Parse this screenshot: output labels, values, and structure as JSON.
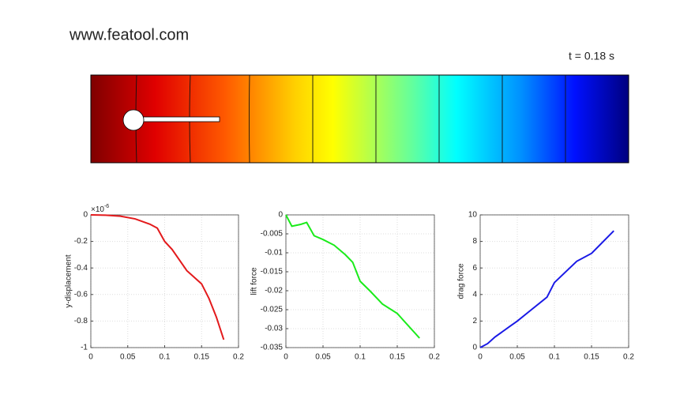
{
  "header": {
    "site": "www.featool.com",
    "time": "t = 0.18 s"
  },
  "chart_data": [
    {
      "type": "line",
      "ylabel": "y-displacement",
      "y_multiplier": {
        "base": "×10",
        "exponent": "-6"
      },
      "x": [
        0,
        0.02,
        0.04,
        0.06,
        0.08,
        0.09,
        0.1,
        0.11,
        0.13,
        0.15,
        0.16,
        0.17,
        0.18
      ],
      "values": [
        0,
        -0.002,
        -0.01,
        -0.03,
        -0.07,
        -0.1,
        -0.2,
        -0.26,
        -0.42,
        -0.52,
        -0.63,
        -0.77,
        -0.94
      ],
      "color": "#e31a1c",
      "xlim": [
        0,
        0.2
      ],
      "xticks": [
        0,
        0.05,
        0.1,
        0.15,
        0.2
      ],
      "ylim": [
        -1,
        0
      ],
      "yticks": [
        -1,
        -0.8,
        -0.6,
        -0.4,
        -0.2,
        0
      ],
      "grid": true
    },
    {
      "type": "line",
      "ylabel": "lift force",
      "x": [
        0,
        0.008,
        0.02,
        0.028,
        0.038,
        0.05,
        0.065,
        0.08,
        0.09,
        0.1,
        0.113,
        0.13,
        0.15,
        0.18
      ],
      "values": [
        0,
        -0.003,
        -0.0025,
        -0.002,
        -0.0055,
        -0.0065,
        -0.008,
        -0.0105,
        -0.0125,
        -0.0175,
        -0.02,
        -0.0235,
        -0.026,
        -0.0325
      ],
      "color": "#1aeb1a",
      "xlim": [
        0,
        0.2
      ],
      "xticks": [
        0,
        0.05,
        0.1,
        0.15,
        0.2
      ],
      "ylim": [
        -0.035,
        0
      ],
      "yticks": [
        -0.035,
        -0.03,
        -0.025,
        -0.02,
        -0.015,
        -0.01,
        -0.005,
        0
      ],
      "grid": true
    },
    {
      "type": "line",
      "ylabel": "drag force",
      "x": [
        0,
        0.01,
        0.02,
        0.04,
        0.05,
        0.07,
        0.09,
        0.1,
        0.13,
        0.15,
        0.18
      ],
      "values": [
        0,
        0.3,
        0.8,
        1.6,
        2.0,
        2.9,
        3.8,
        4.9,
        6.5,
        7.1,
        8.8
      ],
      "color": "#1a1ae6",
      "xlim": [
        0,
        0.2
      ],
      "xticks": [
        0,
        0.05,
        0.1,
        0.15,
        0.2
      ],
      "ylim": [
        0,
        10
      ],
      "yticks": [
        0,
        2,
        4,
        6,
        8,
        10
      ],
      "grid": true
    }
  ]
}
